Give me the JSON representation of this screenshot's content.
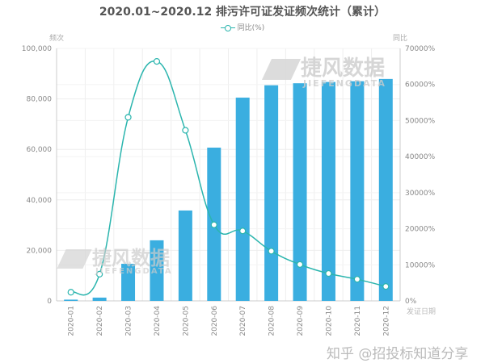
{
  "chart_data": {
    "type": "bar+line",
    "title": "2020.01~2020.12 排污许可证发证频次统计（累计）",
    "legend": {
      "entries": [
        "同比(%)"
      ],
      "position": "top"
    },
    "xlabel": "发证日期",
    "ylabel_left": "频次",
    "ylabel_right": "同比",
    "categories": [
      "2020-01",
      "2020-02",
      "2020-03",
      "2020-04",
      "2020-05",
      "2020-06",
      "2020-07",
      "2020-08",
      "2020-09",
      "2020-10",
      "2020-11",
      "2020-12"
    ],
    "series": [
      {
        "type": "bar",
        "axis": "left",
        "color": "#3aaee0",
        "values": [
          500,
          1300,
          14700,
          24000,
          35800,
          60700,
          80500,
          85400,
          86200,
          86700,
          87000,
          87900
        ]
      },
      {
        "name": "同比(%)",
        "type": "line",
        "axis": "right",
        "color": "#2bb5ae",
        "smooth": true,
        "values": [
          2400,
          7400,
          50900,
          66400,
          47300,
          21100,
          19400,
          13800,
          10100,
          7600,
          6000,
          4000
        ]
      }
    ],
    "ylim_left": [
      0,
      100000
    ],
    "yticks_left": [
      "0",
      "20,000",
      "40,000",
      "60,000",
      "80,000",
      "100,000"
    ],
    "ylim_right": [
      0,
      70000
    ],
    "yticks_right": [
      "0%",
      "10000%",
      "20000%",
      "30000%",
      "40000%",
      "50000%",
      "60000%",
      "70000%"
    ],
    "grid": true
  },
  "watermarks": {
    "brand": "捷风数据",
    "brand_en": "JIEFENGDATA",
    "credit": "知乎 @招投标知道分享"
  }
}
